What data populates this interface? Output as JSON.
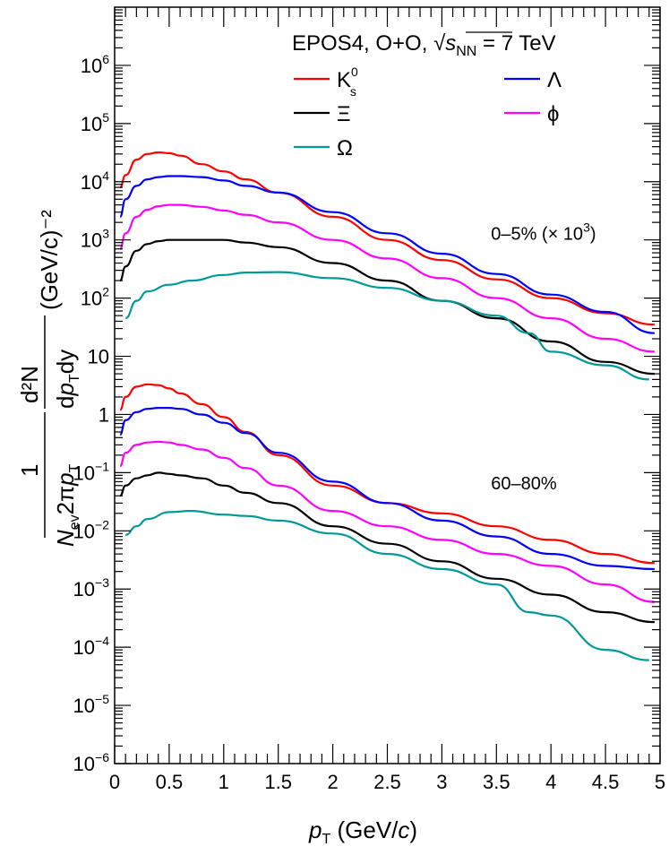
{
  "chart_data": {
    "type": "line",
    "title": "EPOS4, O+O, √s_NN = 7 TeV",
    "title_parts": {
      "prefix": "EPOS4, O+O, ",
      "s": "s",
      "sub": "NN",
      "suffix": " = 7 TeV"
    },
    "xlabel": {
      "p": "p",
      "sub": "T",
      "unit": " (GeV/",
      "c": "c",
      "close": ")"
    },
    "ylabel": {
      "numerator": "1",
      "denominator": {
        "n": "N",
        "ev": "ev",
        "two_pi": "2π",
        "p": "p",
        "t": "T"
      },
      "frac2_num": "d²N",
      "frac2_den": {
        "d": "d",
        "p": "p",
        "t": "T",
        "dy": "dy"
      },
      "unit": "(GeV/c)⁻²"
    },
    "xlim": [
      0,
      5
    ],
    "ylim": [
      1e-06,
      10000000.0
    ],
    "log_y": true,
    "x_ticks": [
      "0",
      "0.5",
      "1",
      "1.5",
      "2",
      "2.5",
      "3",
      "3.5",
      "4",
      "4.5",
      "5"
    ],
    "y_ticks": [
      {
        "value": 1e-06,
        "base": "10",
        "exp": "−6"
      },
      {
        "value": 1e-05,
        "base": "10",
        "exp": "−5"
      },
      {
        "value": 0.0001,
        "base": "10",
        "exp": "−4"
      },
      {
        "value": 0.001,
        "base": "10",
        "exp": "−3"
      },
      {
        "value": 0.01,
        "base": "10",
        "exp": "−2"
      },
      {
        "value": 0.1,
        "base": "10",
        "exp": "−1"
      },
      {
        "value": 1,
        "base": "1",
        "exp": ""
      },
      {
        "value": 10,
        "base": "10",
        "exp": ""
      },
      {
        "value": 100,
        "base": "10",
        "exp": "2"
      },
      {
        "value": 1000,
        "base": "10",
        "exp": "3"
      },
      {
        "value": 10000,
        "base": "10",
        "exp": "4"
      },
      {
        "value": 100000,
        "base": "10",
        "exp": "5"
      },
      {
        "value": 1000000,
        "base": "10",
        "exp": "6"
      }
    ],
    "grid": false,
    "legend_placement": "top-right",
    "annotations": [
      {
        "text": "0–5% (× 10",
        "sup": "3",
        "after": ")",
        "at": {
          "x": 3.45,
          "y": 1000
        }
      },
      {
        "text": "60–80%",
        "at": {
          "x": 3.45,
          "y": 0.052
        }
      }
    ],
    "series": [
      {
        "name": "K",
        "name_sub": "s",
        "name_sup": "0",
        "color": "#ff0000",
        "group": "0-5%",
        "x": [
          0.05,
          0.1,
          0.2,
          0.3,
          0.4,
          0.5,
          0.6,
          0.8,
          1.0,
          1.2,
          1.5,
          2.0,
          2.5,
          3.0,
          3.5,
          4.0,
          4.5,
          4.95
        ],
        "y": [
          8000,
          13000,
          24000,
          30000,
          32000,
          31000,
          28000,
          20000,
          15000,
          11000,
          6500,
          2500,
          1000,
          450,
          210,
          100,
          55,
          35
        ]
      },
      {
        "name": "Λ",
        "color": "#0000ff",
        "group": "0-5%",
        "x": [
          0.05,
          0.1,
          0.2,
          0.3,
          0.4,
          0.5,
          0.6,
          0.8,
          1.0,
          1.2,
          1.5,
          2.0,
          2.5,
          3.0,
          3.5,
          4.0,
          4.5,
          4.95
        ],
        "y": [
          2500,
          5000,
          8500,
          11000,
          12000,
          12500,
          12500,
          12000,
          10500,
          8500,
          6500,
          3000,
          1300,
          580,
          260,
          115,
          58,
          25
        ]
      },
      {
        "name": "ϕ",
        "color": "#ff00ff",
        "group": "0-5%",
        "x": [
          0.05,
          0.1,
          0.2,
          0.3,
          0.4,
          0.5,
          0.6,
          0.8,
          1.0,
          1.2,
          1.5,
          2.0,
          2.5,
          3.0,
          3.5,
          4.0,
          4.5,
          4.95
        ],
        "y": [
          700,
          1300,
          2500,
          3300,
          3800,
          4000,
          4000,
          3700,
          3200,
          2700,
          2000,
          1000,
          480,
          220,
          100,
          45,
          20,
          12
        ]
      },
      {
        "name": "Ξ",
        "color": "#000000",
        "group": "0-5%",
        "x": [
          0.05,
          0.1,
          0.2,
          0.3,
          0.4,
          0.5,
          0.6,
          0.8,
          1.0,
          1.2,
          1.5,
          2.0,
          2.5,
          3.0,
          3.5,
          4.0,
          4.5,
          4.95
        ],
        "y": [
          200,
          350,
          650,
          850,
          950,
          1000,
          1000,
          1000,
          1000,
          900,
          750,
          400,
          200,
          90,
          45,
          18,
          8,
          5
        ]
      },
      {
        "name": "Ω",
        "color": "#009999",
        "group": "0-5%",
        "x": [
          0.1,
          0.2,
          0.3,
          0.5,
          0.7,
          1.0,
          1.2,
          1.5,
          2.0,
          2.5,
          3.0,
          3.5,
          3.8,
          4.0,
          4.5,
          4.9
        ],
        "y": [
          45,
          90,
          130,
          170,
          200,
          250,
          275,
          280,
          220,
          150,
          90,
          50,
          25,
          12,
          7,
          4
        ]
      },
      {
        "name": "K₀s (60–80%)",
        "color": "#ff0000",
        "group": "60-80%",
        "x": [
          0.05,
          0.1,
          0.2,
          0.3,
          0.4,
          0.5,
          0.6,
          0.8,
          1.0,
          1.2,
          1.5,
          2.0,
          2.5,
          3.0,
          3.5,
          4.0,
          4.5,
          4.95
        ],
        "y": [
          1.2,
          2.0,
          3.0,
          3.3,
          3.2,
          2.8,
          2.3,
          1.5,
          0.9,
          0.5,
          0.2,
          0.06,
          0.03,
          0.02,
          0.012,
          0.007,
          0.004,
          0.0028
        ]
      },
      {
        "name": "Λ (60–80%)",
        "color": "#0000ff",
        "group": "60-80%",
        "x": [
          0.05,
          0.1,
          0.2,
          0.3,
          0.4,
          0.5,
          0.6,
          0.8,
          1.0,
          1.2,
          1.5,
          2.0,
          2.5,
          3.0,
          3.5,
          4.0,
          4.5,
          4.95
        ],
        "y": [
          0.45,
          0.8,
          1.1,
          1.25,
          1.3,
          1.3,
          1.25,
          1.0,
          0.72,
          0.48,
          0.22,
          0.07,
          0.03,
          0.015,
          0.008,
          0.004,
          0.0025,
          0.0022
        ]
      },
      {
        "name": "ϕ (60–80%)",
        "color": "#ff00ff",
        "group": "60-80%",
        "x": [
          0.05,
          0.1,
          0.2,
          0.3,
          0.4,
          0.5,
          0.6,
          0.8,
          1.0,
          1.2,
          1.5,
          2.0,
          2.5,
          3.0,
          3.5,
          4.0,
          4.5,
          4.95
        ],
        "y": [
          0.13,
          0.22,
          0.3,
          0.33,
          0.34,
          0.33,
          0.3,
          0.25,
          0.18,
          0.12,
          0.06,
          0.022,
          0.012,
          0.007,
          0.004,
          0.0025,
          0.0012,
          0.0006
        ]
      },
      {
        "name": "Ξ (60–80%)",
        "color": "#000000",
        "group": "60-80%",
        "x": [
          0.05,
          0.1,
          0.2,
          0.3,
          0.4,
          0.5,
          0.6,
          0.8,
          1.0,
          1.2,
          1.5,
          2.0,
          2.5,
          3.0,
          3.5,
          4.0,
          4.5,
          4.95
        ],
        "y": [
          0.04,
          0.06,
          0.08,
          0.09,
          0.1,
          0.095,
          0.09,
          0.08,
          0.06,
          0.045,
          0.03,
          0.012,
          0.006,
          0.003,
          0.0015,
          0.0008,
          0.0004,
          0.00027
        ]
      },
      {
        "name": "Ω (60–80%)",
        "color": "#009999",
        "group": "60-80%",
        "x": [
          0.1,
          0.2,
          0.3,
          0.5,
          0.7,
          1.0,
          1.2,
          1.5,
          2.0,
          2.5,
          3.0,
          3.5,
          3.8,
          4.0,
          4.5,
          4.9
        ],
        "y": [
          0.0085,
          0.012,
          0.016,
          0.021,
          0.022,
          0.019,
          0.018,
          0.015,
          0.009,
          0.004,
          0.0022,
          0.0012,
          0.0004,
          0.00035,
          9e-05,
          6e-05
        ]
      }
    ]
  }
}
